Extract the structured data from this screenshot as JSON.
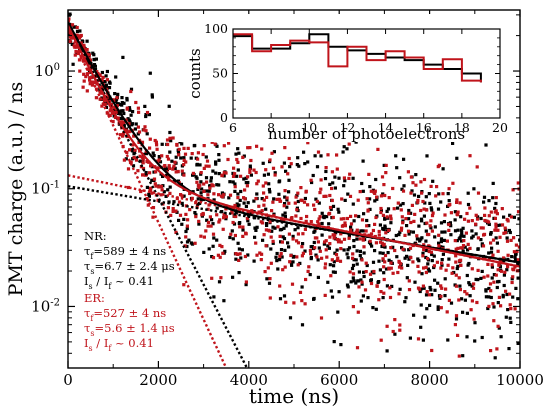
{
  "chart_data": [
    {
      "type": "scatter",
      "xlabel": "time (ns)",
      "ylabel": "PMT charge (a.u.) / ns",
      "xlim": [
        0,
        10000
      ],
      "ylim": [
        0.003,
        3.3
      ],
      "yscale": "log",
      "x_ticks": [
        {
          "v": 0,
          "label": "0"
        },
        {
          "v": 2000,
          "label": "2000"
        },
        {
          "v": 4000,
          "label": "4000"
        },
        {
          "v": 6000,
          "label": "6000"
        },
        {
          "v": 8000,
          "label": "8000"
        },
        {
          "v": 10000,
          "label": "10000"
        }
      ],
      "y_ticks": [
        {
          "v": 0.01,
          "base": "10",
          "exp": "-2"
        },
        {
          "v": 0.1,
          "base": "10",
          "exp": "-1"
        },
        {
          "v": 1,
          "base": "10",
          "exp": "0"
        }
      ],
      "colors": {
        "NR": "#000000",
        "ER": "#c0141b"
      },
      "series": [
        {
          "name": "NR",
          "color": "#000000",
          "fit": {
            "fast_amplitude": 2.5,
            "tau_fast_ns": 589,
            "slow_amplitude": 0.105,
            "tau_slow_ns": 6700
          },
          "slow_component_line": {
            "amplitude": 0.105,
            "tau_ns": 6700
          },
          "fast_component_line": {
            "amplitude": 2.5,
            "tau_ns": 589
          }
        },
        {
          "name": "ER",
          "color": "#c0141b",
          "fit": {
            "fast_amplitude": 2.3,
            "tau_fast_ns": 527,
            "slow_amplitude": 0.13,
            "tau_slow_ns": 5600
          },
          "slow_component_line": {
            "amplitude": 0.13,
            "tau_ns": 5600
          },
          "fast_component_line": {
            "amplitude": 2.3,
            "tau_ns": 527
          }
        }
      ],
      "legend": {
        "placement": "bottom-left",
        "NR": {
          "header": "NR:",
          "tau_f_text": "=589 ± 4 ns",
          "tau_s_text": "=6.7 ± 2.4 μs",
          "ratio_text": "~ 0.41"
        },
        "ER": {
          "header": "ER:",
          "tau_f_text": "=527 ± 4 ns",
          "tau_s_text": "=5.6 ± 1.4 μs",
          "ratio_text": "~ 0.41"
        },
        "tau_symbol": "τ",
        "sub_f": "f",
        "sub_s": "s",
        "I_symbol": "I",
        "slash": " / "
      }
    },
    {
      "type": "line",
      "placement": "inset top-right",
      "xlabel": "number of photoelectrons",
      "ylabel": "counts",
      "xlim": [
        6,
        20
      ],
      "ylim": [
        0,
        100
      ],
      "x_ticks": [
        "6",
        "8",
        "10",
        "12",
        "14",
        "16",
        "18",
        "20"
      ],
      "y_ticks": [
        "0",
        "50",
        "100"
      ],
      "step": true,
      "series": [
        {
          "name": "NR",
          "color": "#000000",
          "x": [
            6.5,
            7.5,
            8.5,
            9.5,
            10.5,
            11.5,
            12.5,
            13.5,
            14.5,
            15.5,
            16.5,
            17.5,
            18.5
          ],
          "values": [
            92,
            78,
            78,
            84,
            94,
            80,
            76,
            72,
            68,
            65,
            60,
            55,
            50
          ]
        },
        {
          "name": "ER",
          "color": "#c0141b",
          "x": [
            6.5,
            7.5,
            8.5,
            9.5,
            10.5,
            11.5,
            12.5,
            13.5,
            14.5,
            15.5,
            16.5,
            17.5,
            18.5
          ],
          "values": [
            94,
            75,
            82,
            87,
            85,
            58,
            80,
            65,
            75,
            68,
            55,
            66,
            42
          ]
        }
      ]
    }
  ]
}
